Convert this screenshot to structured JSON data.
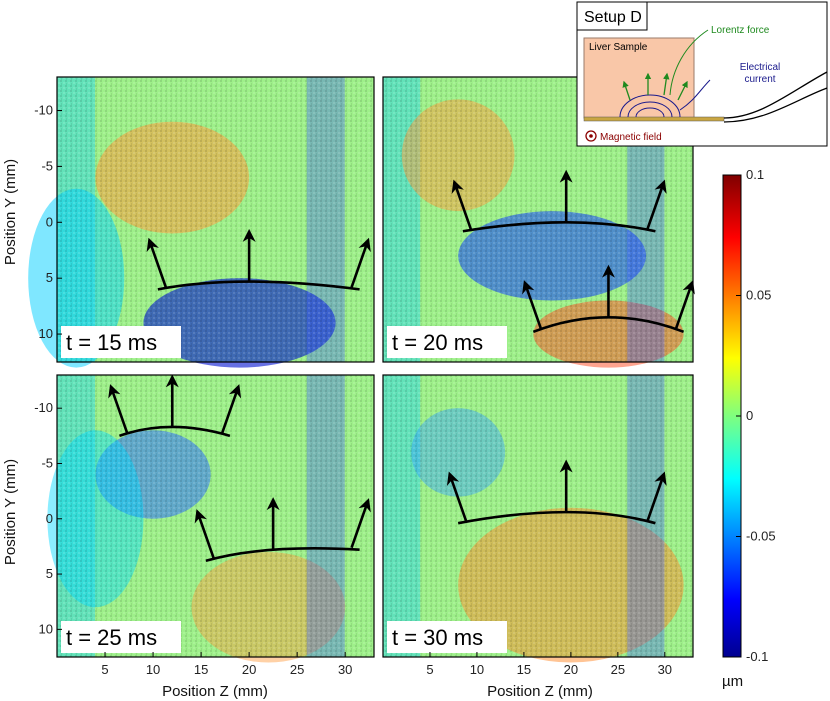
{
  "chart_data": [
    {
      "type": "heatmap",
      "panel": "top-left",
      "time_label": "t = 15 ms",
      "xlabel": "",
      "ylabel": "Position Y (mm)",
      "xlim": [
        0,
        33
      ],
      "ylim": [
        -13,
        12.5
      ],
      "y_reversed": true,
      "yticks": [
        "-10",
        "-5",
        "0",
        "5",
        "10"
      ],
      "wavefronts": [
        {
          "z": [
            10.5,
            20,
            31.5
          ],
          "y": [
            6,
            5.3,
            6
          ]
        }
      ]
    },
    {
      "type": "heatmap",
      "panel": "top-right",
      "time_label": "t = 20 ms",
      "xlabel": "",
      "ylabel": "",
      "xlim": [
        0,
        33
      ],
      "ylim": [
        -13,
        12.5
      ],
      "y_reversed": true,
      "wavefronts": [
        {
          "z": [
            8.5,
            19.5,
            29
          ],
          "y": [
            0.8,
            0,
            0.8
          ]
        },
        {
          "z": [
            16,
            24,
            32
          ],
          "y": [
            9.8,
            8.5,
            9.8
          ]
        }
      ]
    },
    {
      "type": "heatmap",
      "panel": "bottom-left",
      "time_label": "t = 25 ms",
      "xlabel": "Position Z (mm)",
      "ylabel": "Position Y (mm)",
      "xlim": [
        0,
        33
      ],
      "ylim": [
        -13,
        12.5
      ],
      "y_reversed": true,
      "xticks": [
        "5",
        "10",
        "15",
        "20",
        "25",
        "30"
      ],
      "yticks": [
        "-10",
        "-5",
        "0",
        "5",
        "10"
      ],
      "wavefronts": [
        {
          "z": [
            6.5,
            12,
            18
          ],
          "y": [
            -7.5,
            -8.3,
            -7.5
          ]
        },
        {
          "z": [
            15.5,
            22.5,
            31.5
          ],
          "y": [
            3.8,
            2.8,
            2.8
          ]
        }
      ]
    },
    {
      "type": "heatmap",
      "panel": "bottom-right",
      "time_label": "t = 30 ms",
      "xlabel": "Position Z (mm)",
      "ylabel": "",
      "xlim": [
        0,
        33
      ],
      "ylim": [
        -13,
        12.5
      ],
      "y_reversed": true,
      "xticks": [
        "5",
        "10",
        "15",
        "20",
        "25",
        "30"
      ],
      "wavefronts": [
        {
          "z": [
            8,
            19.5,
            29
          ],
          "y": [
            0.4,
            -0.6,
            0.4
          ]
        }
      ]
    }
  ],
  "colorbar": {
    "unit": "µm",
    "range": [
      -0.1,
      0.1
    ],
    "ticks": [
      "0.1",
      "0.05",
      "0",
      "-0.05",
      "-0.1"
    ],
    "colormap": "jet",
    "colors": [
      "#00008f",
      "#0000ff",
      "#00ffff",
      "#7fff7f",
      "#ffff00",
      "#ff0000",
      "#800000"
    ]
  },
  "inset": {
    "title": "Setup D",
    "sample_label": "Liver Sample",
    "force_label": "Lorentz force",
    "current_label_1": "Electrical",
    "current_label_2": "current",
    "field_label": "Magnetic field",
    "sample_color": "#f9c7a8",
    "force_color": "#1f8a1f",
    "current_color": "#1a1a8c",
    "field_color": "#8b0000"
  }
}
